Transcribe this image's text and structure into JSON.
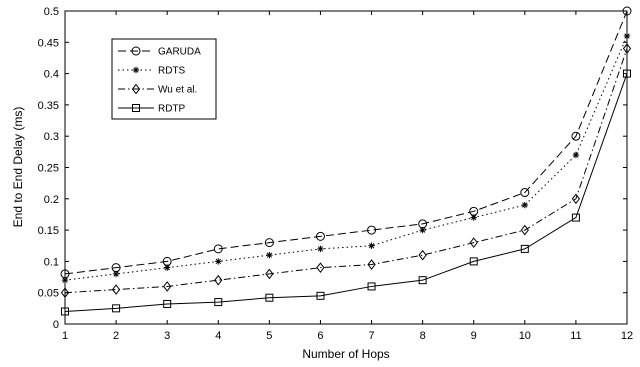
{
  "chart_data": {
    "type": "line",
    "title": "",
    "xlabel": "Number of Hops",
    "ylabel": "End to End Delay (ms)",
    "xlim": [
      1,
      12
    ],
    "ylim": [
      0,
      0.5
    ],
    "x_ticks": [
      "1",
      "2",
      "3",
      "4",
      "5",
      "6",
      "7",
      "8",
      "9",
      "10",
      "11",
      "12"
    ],
    "y_ticks": [
      "0",
      "0.05",
      "0.1",
      "0.15",
      "0.2",
      "0.25",
      "0.3",
      "0.35",
      "0.4",
      "0.45",
      "0.5"
    ],
    "grid": false,
    "legend_position": "top-left",
    "x": [
      1,
      2,
      3,
      4,
      5,
      6,
      7,
      8,
      9,
      10,
      11,
      12
    ],
    "series": [
      {
        "name": "GARUDA",
        "marker": "circle",
        "dash": "dashed",
        "values": [
          0.08,
          0.09,
          0.1,
          0.12,
          0.13,
          0.14,
          0.15,
          0.16,
          0.18,
          0.21,
          0.3,
          0.5
        ]
      },
      {
        "name": "RDTS",
        "marker": "star",
        "dash": "dotted",
        "values": [
          0.07,
          0.08,
          0.09,
          0.1,
          0.11,
          0.12,
          0.125,
          0.15,
          0.17,
          0.19,
          0.27,
          0.46
        ]
      },
      {
        "name": "Wu et al.",
        "marker": "diamond",
        "dash": "dashdot",
        "values": [
          0.05,
          0.055,
          0.06,
          0.07,
          0.08,
          0.09,
          0.095,
          0.11,
          0.13,
          0.15,
          0.2,
          0.44
        ]
      },
      {
        "name": "RDTP",
        "marker": "square",
        "dash": "solid",
        "values": [
          0.02,
          0.025,
          0.032,
          0.035,
          0.042,
          0.045,
          0.06,
          0.07,
          0.1,
          0.12,
          0.17,
          0.4
        ]
      }
    ]
  }
}
